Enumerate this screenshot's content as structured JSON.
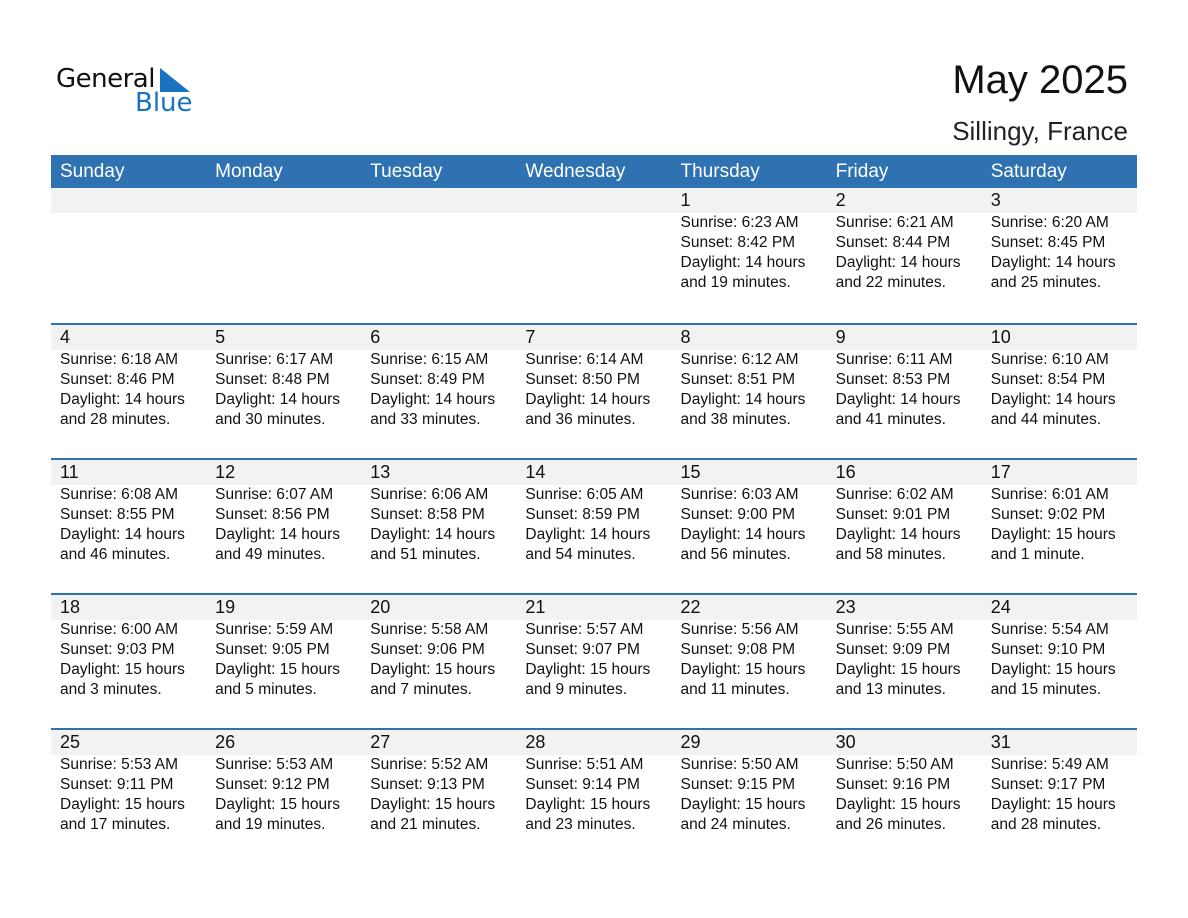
{
  "logo": {
    "text_general": "General",
    "text_blue": "Blue",
    "brand_color": "#1a73c0"
  },
  "title": "May 2025",
  "location": "Sillingy, France",
  "colors": {
    "header": "#2e72b2",
    "date_band": "#f2f2f2"
  },
  "weekdays": [
    "Sunday",
    "Monday",
    "Tuesday",
    "Wednesday",
    "Thursday",
    "Friday",
    "Saturday"
  ],
  "weeks": [
    [
      null,
      null,
      null,
      null,
      {
        "day": "1",
        "sunrise": "Sunrise: 6:23 AM",
        "sunset": "Sunset: 8:42 PM",
        "daylight": "Daylight: 14 hours",
        "minutes": "and 19 minutes."
      },
      {
        "day": "2",
        "sunrise": "Sunrise: 6:21 AM",
        "sunset": "Sunset: 8:44 PM",
        "daylight": "Daylight: 14 hours",
        "minutes": "and 22 minutes."
      },
      {
        "day": "3",
        "sunrise": "Sunrise: 6:20 AM",
        "sunset": "Sunset: 8:45 PM",
        "daylight": "Daylight: 14 hours",
        "minutes": "and 25 minutes."
      }
    ],
    [
      {
        "day": "4",
        "sunrise": "Sunrise: 6:18 AM",
        "sunset": "Sunset: 8:46 PM",
        "daylight": "Daylight: 14 hours",
        "minutes": "and 28 minutes."
      },
      {
        "day": "5",
        "sunrise": "Sunrise: 6:17 AM",
        "sunset": "Sunset: 8:48 PM",
        "daylight": "Daylight: 14 hours",
        "minutes": "and 30 minutes."
      },
      {
        "day": "6",
        "sunrise": "Sunrise: 6:15 AM",
        "sunset": "Sunset: 8:49 PM",
        "daylight": "Daylight: 14 hours",
        "minutes": "and 33 minutes."
      },
      {
        "day": "7",
        "sunrise": "Sunrise: 6:14 AM",
        "sunset": "Sunset: 8:50 PM",
        "daylight": "Daylight: 14 hours",
        "minutes": "and 36 minutes."
      },
      {
        "day": "8",
        "sunrise": "Sunrise: 6:12 AM",
        "sunset": "Sunset: 8:51 PM",
        "daylight": "Daylight: 14 hours",
        "minutes": "and 38 minutes."
      },
      {
        "day": "9",
        "sunrise": "Sunrise: 6:11 AM",
        "sunset": "Sunset: 8:53 PM",
        "daylight": "Daylight: 14 hours",
        "minutes": "and 41 minutes."
      },
      {
        "day": "10",
        "sunrise": "Sunrise: 6:10 AM",
        "sunset": "Sunset: 8:54 PM",
        "daylight": "Daylight: 14 hours",
        "minutes": "and 44 minutes."
      }
    ],
    [
      {
        "day": "11",
        "sunrise": "Sunrise: 6:08 AM",
        "sunset": "Sunset: 8:55 PM",
        "daylight": "Daylight: 14 hours",
        "minutes": "and 46 minutes."
      },
      {
        "day": "12",
        "sunrise": "Sunrise: 6:07 AM",
        "sunset": "Sunset: 8:56 PM",
        "daylight": "Daylight: 14 hours",
        "minutes": "and 49 minutes."
      },
      {
        "day": "13",
        "sunrise": "Sunrise: 6:06 AM",
        "sunset": "Sunset: 8:58 PM",
        "daylight": "Daylight: 14 hours",
        "minutes": "and 51 minutes."
      },
      {
        "day": "14",
        "sunrise": "Sunrise: 6:05 AM",
        "sunset": "Sunset: 8:59 PM",
        "daylight": "Daylight: 14 hours",
        "minutes": "and 54 minutes."
      },
      {
        "day": "15",
        "sunrise": "Sunrise: 6:03 AM",
        "sunset": "Sunset: 9:00 PM",
        "daylight": "Daylight: 14 hours",
        "minutes": "and 56 minutes."
      },
      {
        "day": "16",
        "sunrise": "Sunrise: 6:02 AM",
        "sunset": "Sunset: 9:01 PM",
        "daylight": "Daylight: 14 hours",
        "minutes": "and 58 minutes."
      },
      {
        "day": "17",
        "sunrise": "Sunrise: 6:01 AM",
        "sunset": "Sunset: 9:02 PM",
        "daylight": "Daylight: 15 hours",
        "minutes": "and 1 minute."
      }
    ],
    [
      {
        "day": "18",
        "sunrise": "Sunrise: 6:00 AM",
        "sunset": "Sunset: 9:03 PM",
        "daylight": "Daylight: 15 hours",
        "minutes": "and 3 minutes."
      },
      {
        "day": "19",
        "sunrise": "Sunrise: 5:59 AM",
        "sunset": "Sunset: 9:05 PM",
        "daylight": "Daylight: 15 hours",
        "minutes": "and 5 minutes."
      },
      {
        "day": "20",
        "sunrise": "Sunrise: 5:58 AM",
        "sunset": "Sunset: 9:06 PM",
        "daylight": "Daylight: 15 hours",
        "minutes": "and 7 minutes."
      },
      {
        "day": "21",
        "sunrise": "Sunrise: 5:57 AM",
        "sunset": "Sunset: 9:07 PM",
        "daylight": "Daylight: 15 hours",
        "minutes": "and 9 minutes."
      },
      {
        "day": "22",
        "sunrise": "Sunrise: 5:56 AM",
        "sunset": "Sunset: 9:08 PM",
        "daylight": "Daylight: 15 hours",
        "minutes": "and 11 minutes."
      },
      {
        "day": "23",
        "sunrise": "Sunrise: 5:55 AM",
        "sunset": "Sunset: 9:09 PM",
        "daylight": "Daylight: 15 hours",
        "minutes": "and 13 minutes."
      },
      {
        "day": "24",
        "sunrise": "Sunrise: 5:54 AM",
        "sunset": "Sunset: 9:10 PM",
        "daylight": "Daylight: 15 hours",
        "minutes": "and 15 minutes."
      }
    ],
    [
      {
        "day": "25",
        "sunrise": "Sunrise: 5:53 AM",
        "sunset": "Sunset: 9:11 PM",
        "daylight": "Daylight: 15 hours",
        "minutes": "and 17 minutes."
      },
      {
        "day": "26",
        "sunrise": "Sunrise: 5:53 AM",
        "sunset": "Sunset: 9:12 PM",
        "daylight": "Daylight: 15 hours",
        "minutes": "and 19 minutes."
      },
      {
        "day": "27",
        "sunrise": "Sunrise: 5:52 AM",
        "sunset": "Sunset: 9:13 PM",
        "daylight": "Daylight: 15 hours",
        "minutes": "and 21 minutes."
      },
      {
        "day": "28",
        "sunrise": "Sunrise: 5:51 AM",
        "sunset": "Sunset: 9:14 PM",
        "daylight": "Daylight: 15 hours",
        "minutes": "and 23 minutes."
      },
      {
        "day": "29",
        "sunrise": "Sunrise: 5:50 AM",
        "sunset": "Sunset: 9:15 PM",
        "daylight": "Daylight: 15 hours",
        "minutes": "and 24 minutes."
      },
      {
        "day": "30",
        "sunrise": "Sunrise: 5:50 AM",
        "sunset": "Sunset: 9:16 PM",
        "daylight": "Daylight: 15 hours",
        "minutes": "and 26 minutes."
      },
      {
        "day": "31",
        "sunrise": "Sunrise: 5:49 AM",
        "sunset": "Sunset: 9:17 PM",
        "daylight": "Daylight: 15 hours",
        "minutes": "and 28 minutes."
      }
    ]
  ]
}
